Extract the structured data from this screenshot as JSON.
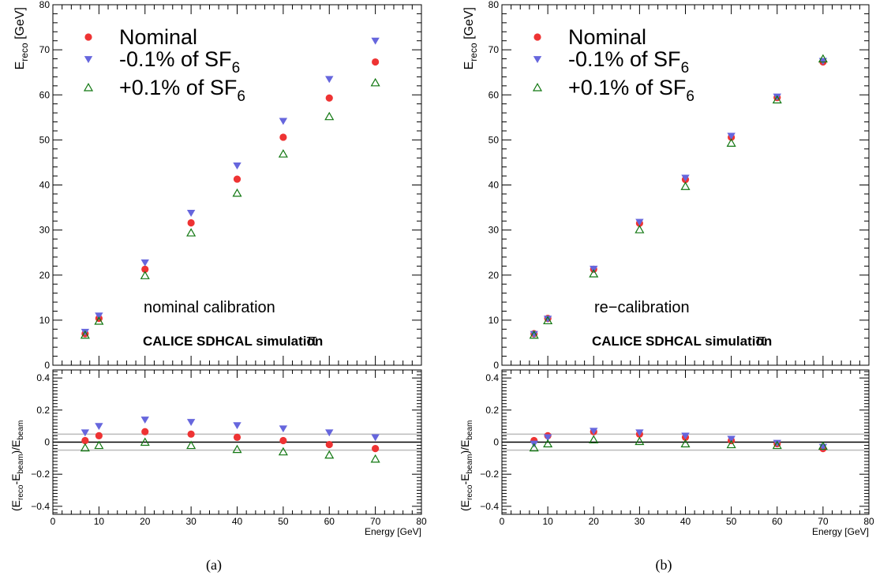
{
  "chart_data": [
    {
      "type": "scatter",
      "caption": "(a)",
      "annotation": "nominal calibration",
      "label": "CALICE SDHCAL simulation",
      "label_symbol": "π",
      "legend_placement": "top-left",
      "x": [
        7,
        10,
        20,
        30,
        40,
        50,
        60,
        70
      ],
      "xlim": [
        0,
        80
      ],
      "xlabel": "Energy [GeV]",
      "top": {
        "ylabel": "E_reco [GeV]",
        "ylim": [
          0,
          80
        ],
        "series": [
          {
            "name": "Nominal",
            "marker": "circle",
            "color": "#ee3333",
            "values": [
              7.0,
              10.4,
              21.3,
              31.6,
              41.3,
              50.6,
              59.3,
              67.3
            ]
          },
          {
            "name": "-0.1% of SF6",
            "marker": "triangle-down",
            "color": "#6666dd",
            "values": [
              7.4,
              11.0,
              22.8,
              33.8,
              44.3,
              54.2,
              63.5,
              72.0
            ]
          },
          {
            "name": "+0.1% of SF6",
            "marker": "triangle-up-open",
            "color": "#117711",
            "values": [
              6.7,
              9.8,
              19.9,
              29.4,
              38.2,
              46.9,
              55.2,
              62.7
            ]
          }
        ]
      },
      "bottom": {
        "ylabel": "(E_reco-E_beam)/E_beam",
        "ylim": [
          -0.45,
          0.45
        ],
        "reference_lines": [
          0.05,
          -0.05
        ],
        "series": [
          {
            "name": "Nominal",
            "marker": "circle",
            "color": "#ee3333",
            "values": [
              0.01,
              0.04,
              0.065,
              0.05,
              0.03,
              0.01,
              -0.015,
              -0.04
            ]
          },
          {
            "name": "-0.1% of SF6",
            "marker": "triangle-down",
            "color": "#6666dd",
            "values": [
              0.06,
              0.1,
              0.14,
              0.125,
              0.105,
              0.085,
              0.06,
              0.03
            ]
          },
          {
            "name": "+0.1% of SF6",
            "marker": "triangle-up-open",
            "color": "#117711",
            "values": [
              -0.035,
              -0.02,
              0.0,
              -0.02,
              -0.045,
              -0.06,
              -0.08,
              -0.105
            ]
          }
        ]
      }
    },
    {
      "type": "scatter",
      "caption": "(b)",
      "annotation": "re−calibration",
      "label": "CALICE SDHCAL simulation",
      "label_symbol": "π",
      "legend_placement": "top-left",
      "x": [
        7,
        10,
        20,
        30,
        40,
        50,
        60,
        70
      ],
      "xlim": [
        0,
        80
      ],
      "xlabel": "Energy [GeV]",
      "top": {
        "ylabel": "E_reco [GeV]",
        "ylim": [
          0,
          80
        ],
        "series": [
          {
            "name": "Nominal",
            "marker": "circle",
            "color": "#ee3333",
            "values": [
              7.0,
              10.4,
              21.3,
              31.5,
              41.2,
              50.6,
              59.4,
              67.3
            ]
          },
          {
            "name": "-0.1% of SF6",
            "marker": "triangle-down",
            "color": "#6666dd",
            "values": [
              6.9,
              10.3,
              21.4,
              31.8,
              41.6,
              50.9,
              59.6,
              67.5
            ]
          },
          {
            "name": "+0.1% of SF6",
            "marker": "triangle-up-open",
            "color": "#117711",
            "values": [
              6.7,
              9.9,
              20.3,
              30.1,
              39.7,
              49.3,
              58.9,
              68.0
            ]
          }
        ]
      },
      "bottom": {
        "ylabel": "(E_reco-E_beam)/E_beam",
        "ylim": [
          -0.45,
          0.45
        ],
        "reference_lines": [
          0.05,
          -0.05
        ],
        "series": [
          {
            "name": "Nominal",
            "marker": "circle",
            "color": "#ee3333",
            "values": [
              0.01,
              0.04,
              0.065,
              0.05,
              0.03,
              0.01,
              -0.01,
              -0.04
            ]
          },
          {
            "name": "-0.1% of SF6",
            "marker": "triangle-down",
            "color": "#6666dd",
            "values": [
              -0.01,
              0.03,
              0.07,
              0.06,
              0.04,
              0.02,
              -0.005,
              -0.03
            ]
          },
          {
            "name": "+0.1% of SF6",
            "marker": "triangle-up-open",
            "color": "#117711",
            "values": [
              -0.035,
              -0.01,
              0.015,
              0.005,
              -0.01,
              -0.015,
              -0.02,
              -0.025
            ]
          }
        ]
      }
    }
  ],
  "legend_labels": [
    {
      "main": "Nominal",
      "sub": ""
    },
    {
      "main": "-0.1% of SF",
      "sub": "6"
    },
    {
      "main": "+0.1% of SF",
      "sub": "6"
    }
  ],
  "axis_titles": {
    "top_y_main": "E",
    "top_y_sub": "reco",
    "top_y_rest": " [GeV]",
    "bottom_y_parts": [
      "(E",
      "reco",
      "-E",
      "beam",
      ")/E",
      "beam"
    ]
  }
}
